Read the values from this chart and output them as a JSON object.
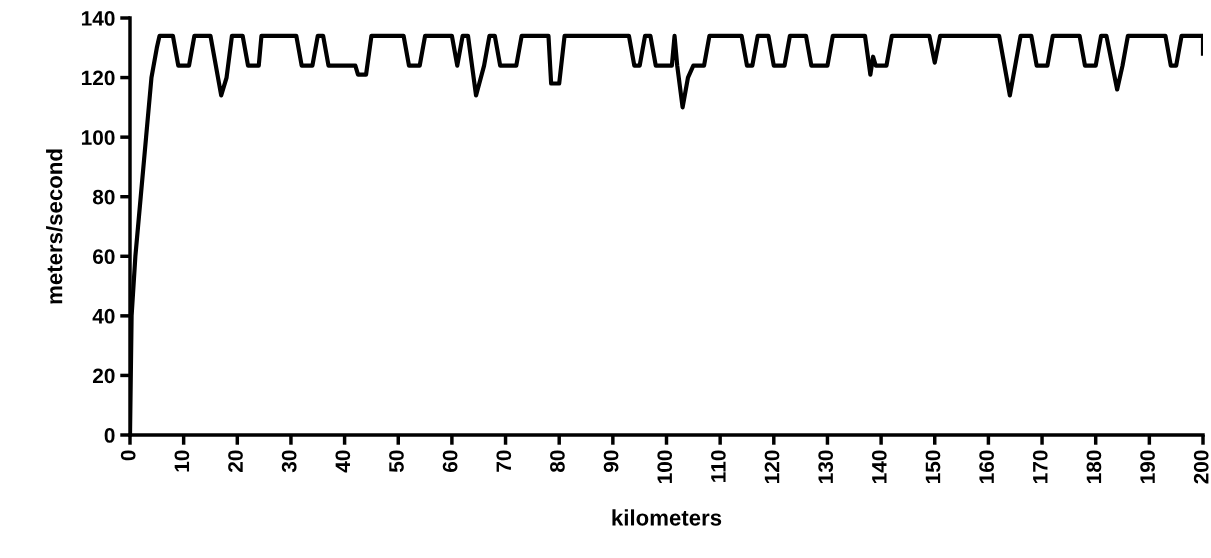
{
  "chart_data": {
    "type": "line",
    "xlabel": "kilometers",
    "ylabel": "meters/second",
    "series": [
      {
        "color": "#000000",
        "x": [
          0,
          0.3,
          1,
          2,
          3,
          4,
          5,
          5.5,
          8,
          9,
          11,
          12,
          15,
          17,
          18,
          19,
          21,
          22,
          24,
          24.5,
          31,
          32,
          34,
          35,
          36,
          37,
          42,
          42.5,
          44,
          45,
          51,
          52,
          54,
          55,
          60,
          61,
          62,
          63,
          64.5,
          66,
          67,
          68,
          69,
          72,
          73,
          78,
          78.5,
          80,
          81,
          93,
          94,
          95,
          96,
          97,
          98,
          101,
          101.5,
          102,
          103,
          104,
          105,
          107,
          108,
          114,
          115,
          116,
          117,
          119,
          120,
          122,
          123,
          126,
          127,
          130,
          131,
          137,
          138,
          138.5,
          139,
          141,
          142,
          149,
          150,
          151,
          162,
          164,
          165,
          166,
          168,
          169,
          171,
          172,
          177,
          178,
          180,
          181,
          182,
          184,
          185,
          186,
          193,
          194,
          195,
          196,
          200,
          200
        ],
        "values": [
          0,
          40,
          60,
          80,
          100,
          120,
          130,
          134,
          134,
          124,
          124,
          134,
          134,
          114,
          120,
          134,
          134,
          124,
          124,
          134,
          134,
          124,
          124,
          134,
          134,
          124,
          124,
          121,
          121,
          134,
          134,
          124,
          124,
          134,
          134,
          124,
          134,
          134,
          114,
          124,
          134,
          134,
          124,
          124,
          134,
          134,
          118,
          118,
          134,
          134,
          124,
          124,
          134,
          134,
          124,
          124,
          134,
          124,
          110,
          120,
          124,
          124,
          134,
          134,
          124,
          124,
          134,
          134,
          124,
          124,
          134,
          134,
          124,
          124,
          134,
          134,
          121,
          127,
          124,
          124,
          134,
          134,
          125,
          134,
          134,
          114,
          124,
          134,
          134,
          124,
          124,
          134,
          134,
          124,
          124,
          134,
          134,
          116,
          124,
          134,
          134,
          124,
          124,
          134,
          134,
          128
        ]
      }
    ],
    "xlim": [
      0,
      200
    ],
    "xticks": [
      0,
      10,
      20,
      30,
      40,
      50,
      60,
      70,
      80,
      90,
      100,
      110,
      120,
      130,
      140,
      150,
      160,
      170,
      180,
      190,
      200
    ],
    "ylim": [
      0,
      140
    ],
    "yticks": [
      0,
      20,
      40,
      60,
      80,
      100,
      120,
      140
    ],
    "grid": false,
    "legend": false,
    "marker": "none",
    "line_style": "solid"
  }
}
